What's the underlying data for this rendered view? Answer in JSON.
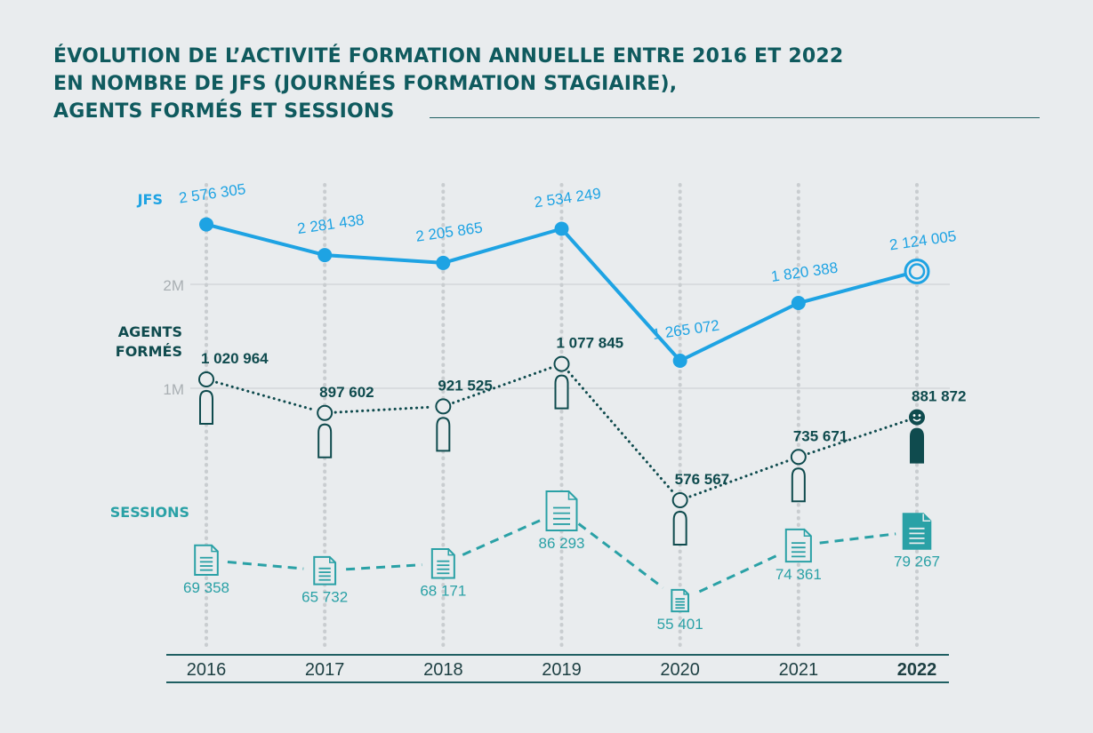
{
  "header": {
    "title_lines": [
      "ÉVOLUTION DE L’ACTIVITÉ FORMATION ANNUELLE ENTRE 2016 ET 2022",
      "EN NOMBRE DE JFS (JOURNÉES FORMATION STAGIAIRE),",
      "AGENTS FORMÉS ET SESSIONS"
    ]
  },
  "colors": {
    "title": "#0f5a5e",
    "jfs": "#1ea3e3",
    "agents": "#0f4b4e",
    "sessions": "#2aa1a6",
    "grid": "#c9cdd0",
    "axis_label": "#a9afb3",
    "background": "#e9ecee"
  },
  "chart_data": {
    "type": "line",
    "title": "ÉVOLUTION DE L’ACTIVITÉ FORMATION ANNUELLE ENTRE 2016 ET 2022 EN NOMBRE DE JFS (JOURNÉES FORMATION STAGIAIRE), AGENTS FORMÉS ET SESSIONS",
    "categories": [
      "2016",
      "2017",
      "2018",
      "2019",
      "2020",
      "2021",
      "2022"
    ],
    "highlight_category": "2022",
    "y_ticks": [
      {
        "value": 2000000,
        "label": "2M"
      },
      {
        "value": 1000000,
        "label": "1M"
      }
    ],
    "series": [
      {
        "key": "jfs",
        "name": "JFS",
        "style": "solid",
        "values": [
          2576305,
          2281438,
          2205865,
          2534249,
          1265072,
          1820388,
          2124005
        ],
        "labels": [
          "2 576 305",
          "2 281 438",
          "2 205 865",
          "2 534 249",
          "1 265 072",
          "1 820 388",
          "2 124 005"
        ]
      },
      {
        "key": "agents",
        "name_lines": [
          "AGENTS",
          "FORMÉS"
        ],
        "style": "dotted",
        "values": [
          1020964,
          897602,
          921525,
          1077845,
          576567,
          735671,
          881872
        ],
        "labels": [
          "1 020 964",
          "897 602",
          "921 525",
          "1 077 845",
          "576 567",
          "735 671",
          "881 872"
        ]
      },
      {
        "key": "sessions",
        "name": "SESSIONS",
        "style": "dashed",
        "values": [
          69358,
          65732,
          68171,
          86293,
          55401,
          74361,
          79267
        ],
        "labels": [
          "69 358",
          "65 732",
          "68 171",
          "86 293",
          "55 401",
          "74 361",
          "79 267"
        ]
      }
    ]
  }
}
